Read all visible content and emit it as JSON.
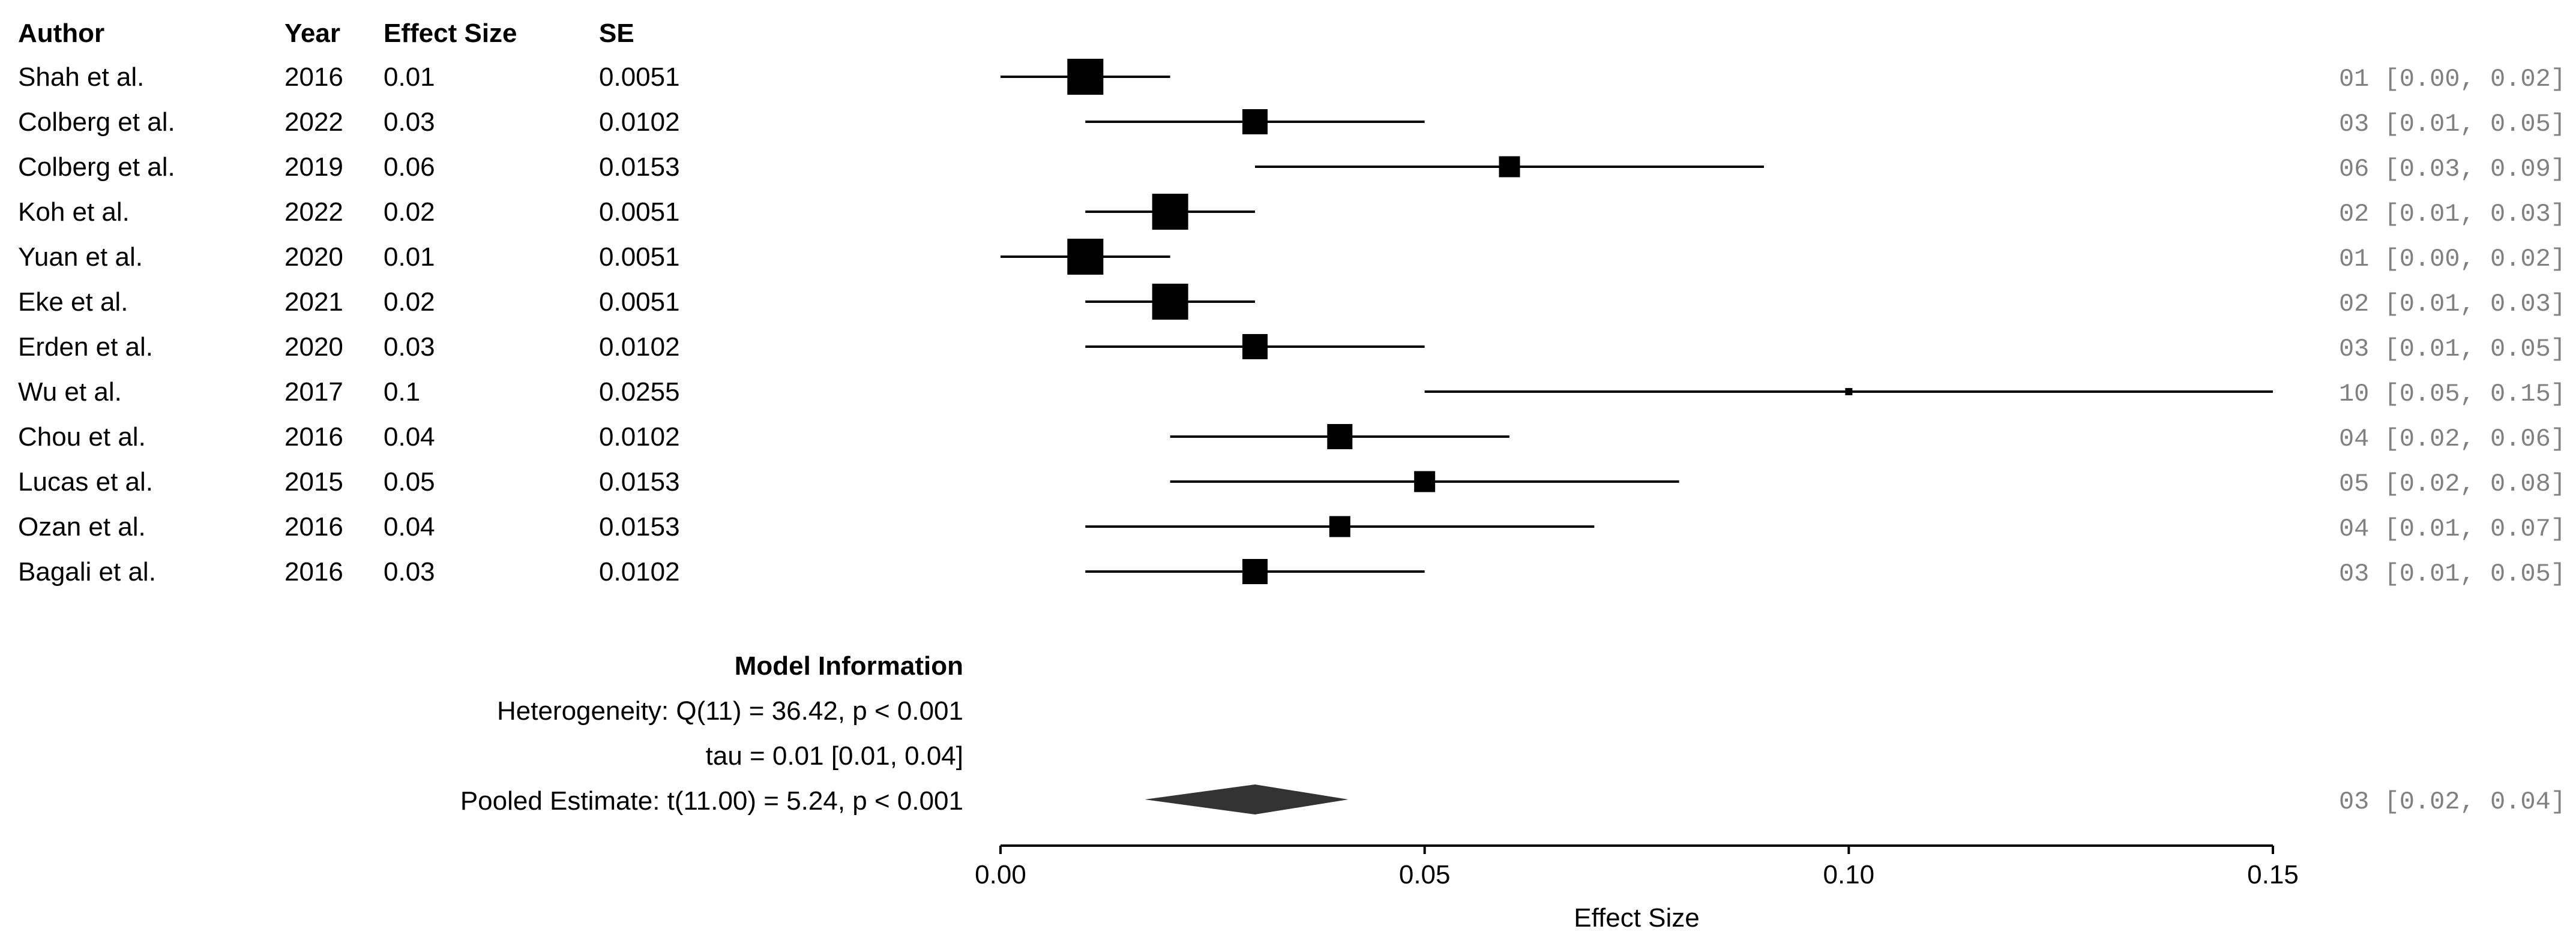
{
  "chart_data": {
    "type": "forest",
    "title": "",
    "xlabel": "Effect Size",
    "xlim": [
      0.0,
      0.15
    ],
    "xticks": [
      0.0,
      0.05,
      0.1,
      0.15
    ],
    "xtick_labels": [
      "0.00",
      "0.05",
      "0.10",
      "0.15"
    ],
    "columns": [
      "Author",
      "Year",
      "Effect Size",
      "SE"
    ],
    "studies": [
      {
        "author": "Shah et al.",
        "year": "2016",
        "es": "0.01",
        "se": "0.0051",
        "est": 0.01,
        "lo": 0.0,
        "hi": 0.02,
        "ci": "01 [0.00, 0.02]"
      },
      {
        "author": "Colberg et al.",
        "year": "2022",
        "es": "0.03",
        "se": "0.0102",
        "est": 0.03,
        "lo": 0.01,
        "hi": 0.05,
        "ci": "03 [0.01, 0.05]"
      },
      {
        "author": "Colberg et al.",
        "year": "2019",
        "es": "0.06",
        "se": "0.0153",
        "est": 0.06,
        "lo": 0.03,
        "hi": 0.09,
        "ci": "06 [0.03, 0.09]"
      },
      {
        "author": "Koh et al.",
        "year": "2022",
        "es": "0.02",
        "se": "0.0051",
        "est": 0.02,
        "lo": 0.01,
        "hi": 0.03,
        "ci": "02 [0.01, 0.03]"
      },
      {
        "author": "Yuan et al.",
        "year": "2020",
        "es": "0.01",
        "se": "0.0051",
        "est": 0.01,
        "lo": 0.0,
        "hi": 0.02,
        "ci": "01 [0.00, 0.02]"
      },
      {
        "author": "Eke et al.",
        "year": "2021",
        "es": "0.02",
        "se": "0.0051",
        "est": 0.02,
        "lo": 0.01,
        "hi": 0.03,
        "ci": "02 [0.01, 0.03]"
      },
      {
        "author": "Erden et al.",
        "year": "2020",
        "es": "0.03",
        "se": "0.0102",
        "est": 0.03,
        "lo": 0.01,
        "hi": 0.05,
        "ci": "03 [0.01, 0.05]"
      },
      {
        "author": "Wu et al.",
        "year": "2017",
        "es": "0.1",
        "se": "0.0255",
        "est": 0.1,
        "lo": 0.05,
        "hi": 0.15,
        "ci": "10 [0.05, 0.15]"
      },
      {
        "author": "Chou et al.",
        "year": "2016",
        "es": "0.04",
        "se": "0.0102",
        "est": 0.04,
        "lo": 0.02,
        "hi": 0.06,
        "ci": "04 [0.02, 0.06]"
      },
      {
        "author": "Lucas et al.",
        "year": "2015",
        "es": "0.05",
        "se": "0.0153",
        "est": 0.05,
        "lo": 0.02,
        "hi": 0.08,
        "ci": "05 [0.02, 0.08]"
      },
      {
        "author": "Ozan et al.",
        "year": "2016",
        "es": "0.04",
        "se": "0.0153",
        "est": 0.04,
        "lo": 0.01,
        "hi": 0.07,
        "ci": "04 [0.01, 0.07]"
      },
      {
        "author": "Bagali et al.",
        "year": "2016",
        "es": "0.03",
        "se": "0.0102",
        "est": 0.03,
        "lo": 0.01,
        "hi": 0.05,
        "ci": "03 [0.01, 0.05]"
      }
    ],
    "model_info": {
      "title": "Model Information",
      "heterogeneity": "Heterogeneity: Q(11) = 36.42, p < 0.001",
      "tau": "tau = 0.01 [0.01, 0.04]",
      "pooled": "Pooled Estimate: t(11.00) = 5.24, p < 0.001"
    },
    "pooled": {
      "est": 0.03,
      "lo": 0.017,
      "hi": 0.041,
      "ci": "03 [0.02, 0.04]"
    },
    "colors": {
      "marker": "#000000",
      "diamond": "#333333",
      "ci_text": "#808080",
      "text": "#000000"
    }
  }
}
